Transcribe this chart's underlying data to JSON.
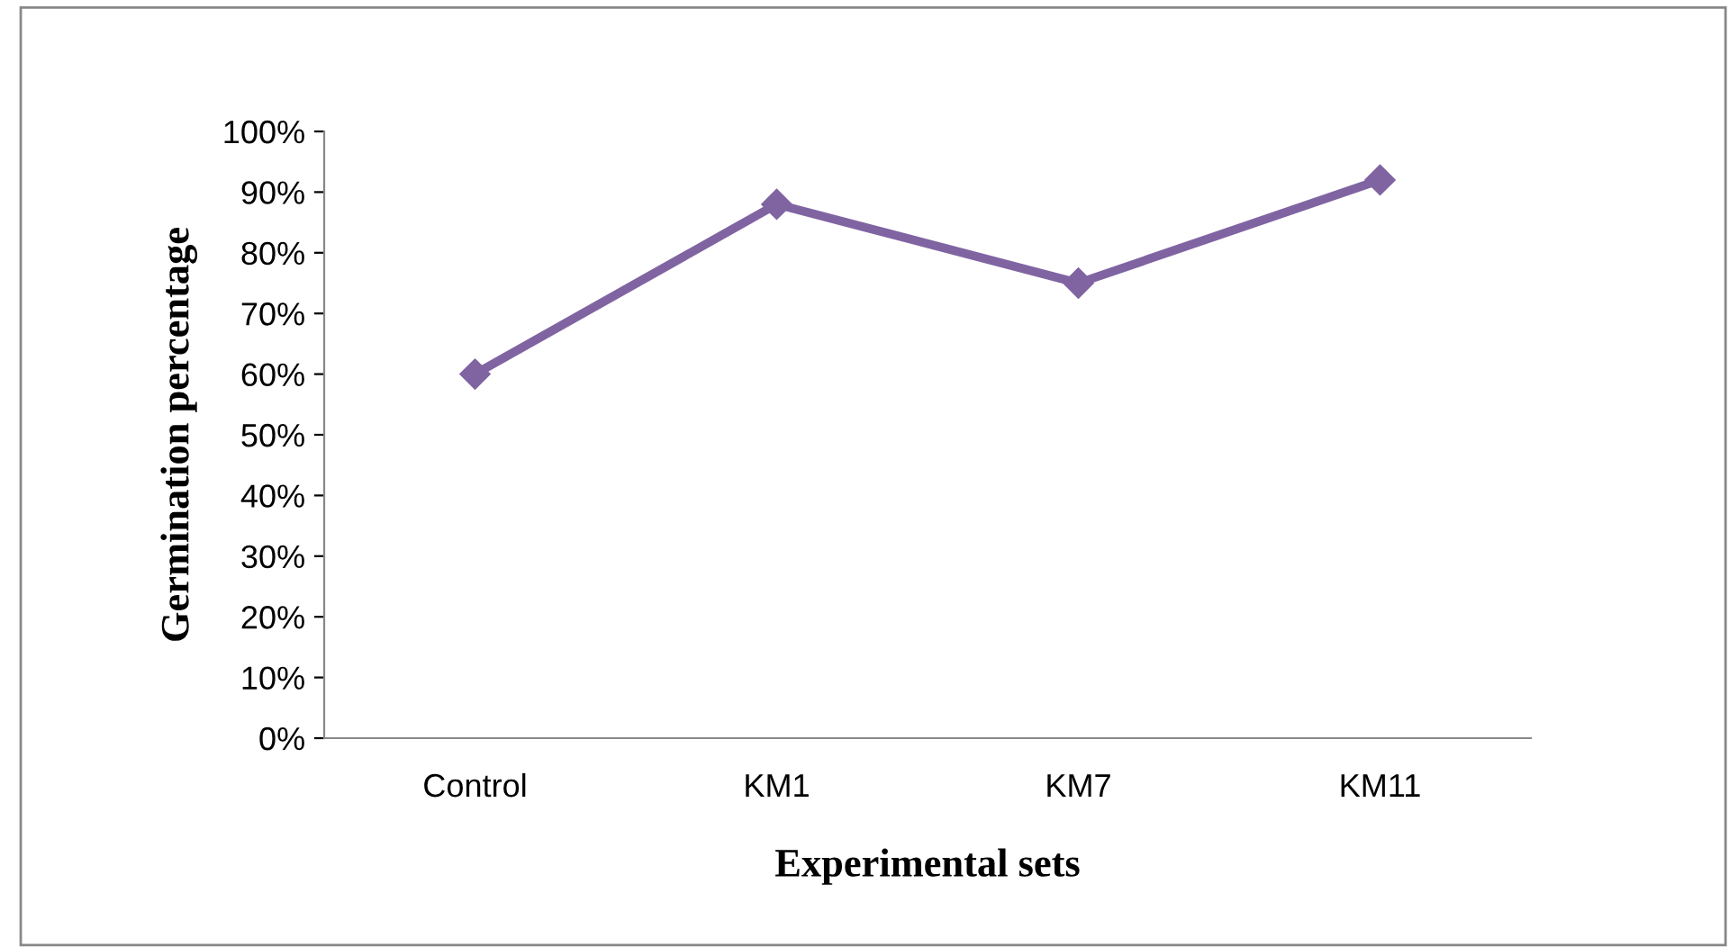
{
  "chart_data": {
    "type": "line",
    "xlabel": "Experimental sets",
    "ylabel": "Germination percentage",
    "categories": [
      "Control",
      "KM1",
      "KM7",
      "KM11"
    ],
    "series": [
      {
        "color": "#8064a2",
        "values": [
          60,
          88,
          75,
          92
        ]
      }
    ],
    "ylim": [
      0,
      100
    ],
    "yticks": [
      {
        "value": 0,
        "label": "0%"
      },
      {
        "value": 10,
        "label": "10%"
      },
      {
        "value": 20,
        "label": "20%"
      },
      {
        "value": 30,
        "label": "30%"
      },
      {
        "value": 40,
        "label": "40%"
      },
      {
        "value": 50,
        "label": "50%"
      },
      {
        "value": 60,
        "label": "60%"
      },
      {
        "value": 70,
        "label": "70%"
      },
      {
        "value": 80,
        "label": "80%"
      },
      {
        "value": 90,
        "label": "90%"
      },
      {
        "value": 100,
        "label": "100%"
      }
    ],
    "grid": false,
    "legend": false,
    "marker": "diamond",
    "line_style": "solid"
  }
}
